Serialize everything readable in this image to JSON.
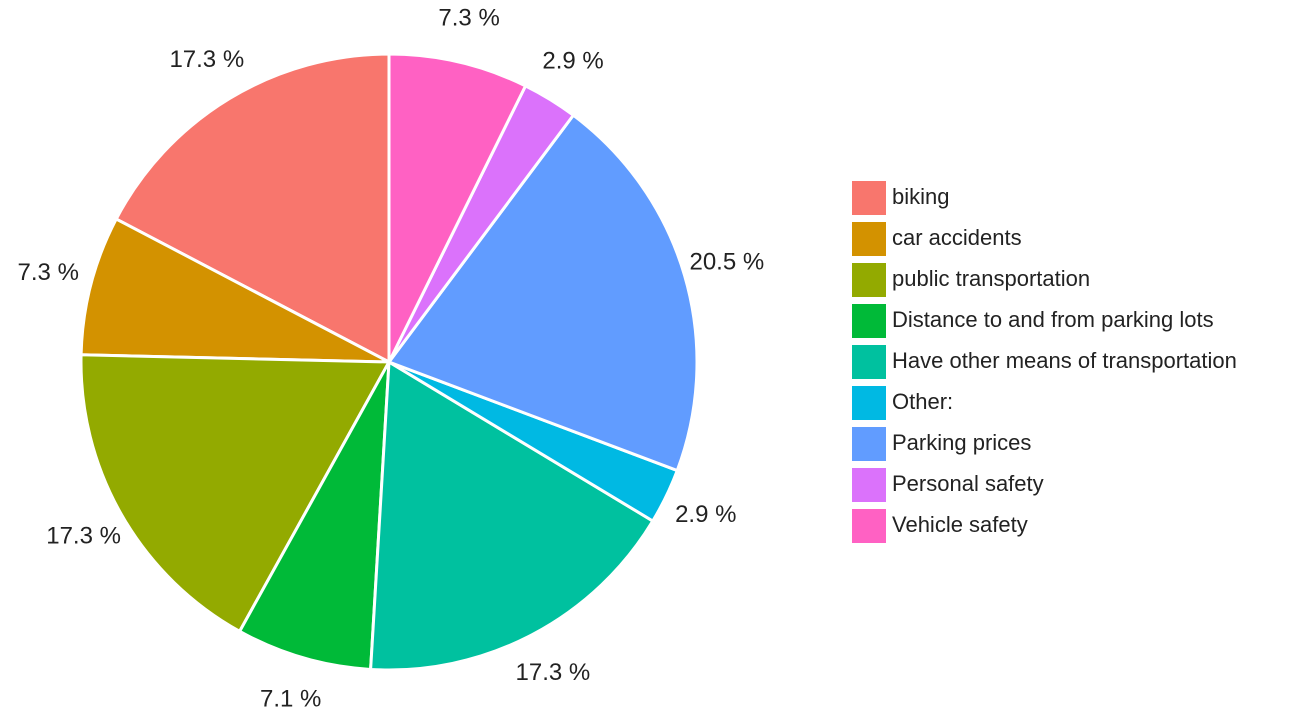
{
  "chart_data": {
    "type": "pie",
    "categories": [
      "biking",
      "car accidents",
      "public transportation",
      "Distance to and from parking lots",
      "Have other means of transportation",
      "Other:",
      "Parking prices",
      "Personal safety",
      "Vehicle safety"
    ],
    "values": [
      17.3,
      7.3,
      17.3,
      7.1,
      17.3,
      2.9,
      20.5,
      2.9,
      7.3
    ],
    "value_labels": [
      "17.3 %",
      "7.3 %",
      "17.3 %",
      "7.1 %",
      "17.3 %",
      "2.9 %",
      "20.5 %",
      "2.9 %",
      "7.3 %"
    ],
    "colors": [
      "#F8766D",
      "#D39200",
      "#93AA00",
      "#00BA38",
      "#00C19F",
      "#00B9E3",
      "#619CFF",
      "#DB72FB",
      "#FF61C3"
    ],
    "direction": "counterclockwise",
    "legend": "right"
  }
}
